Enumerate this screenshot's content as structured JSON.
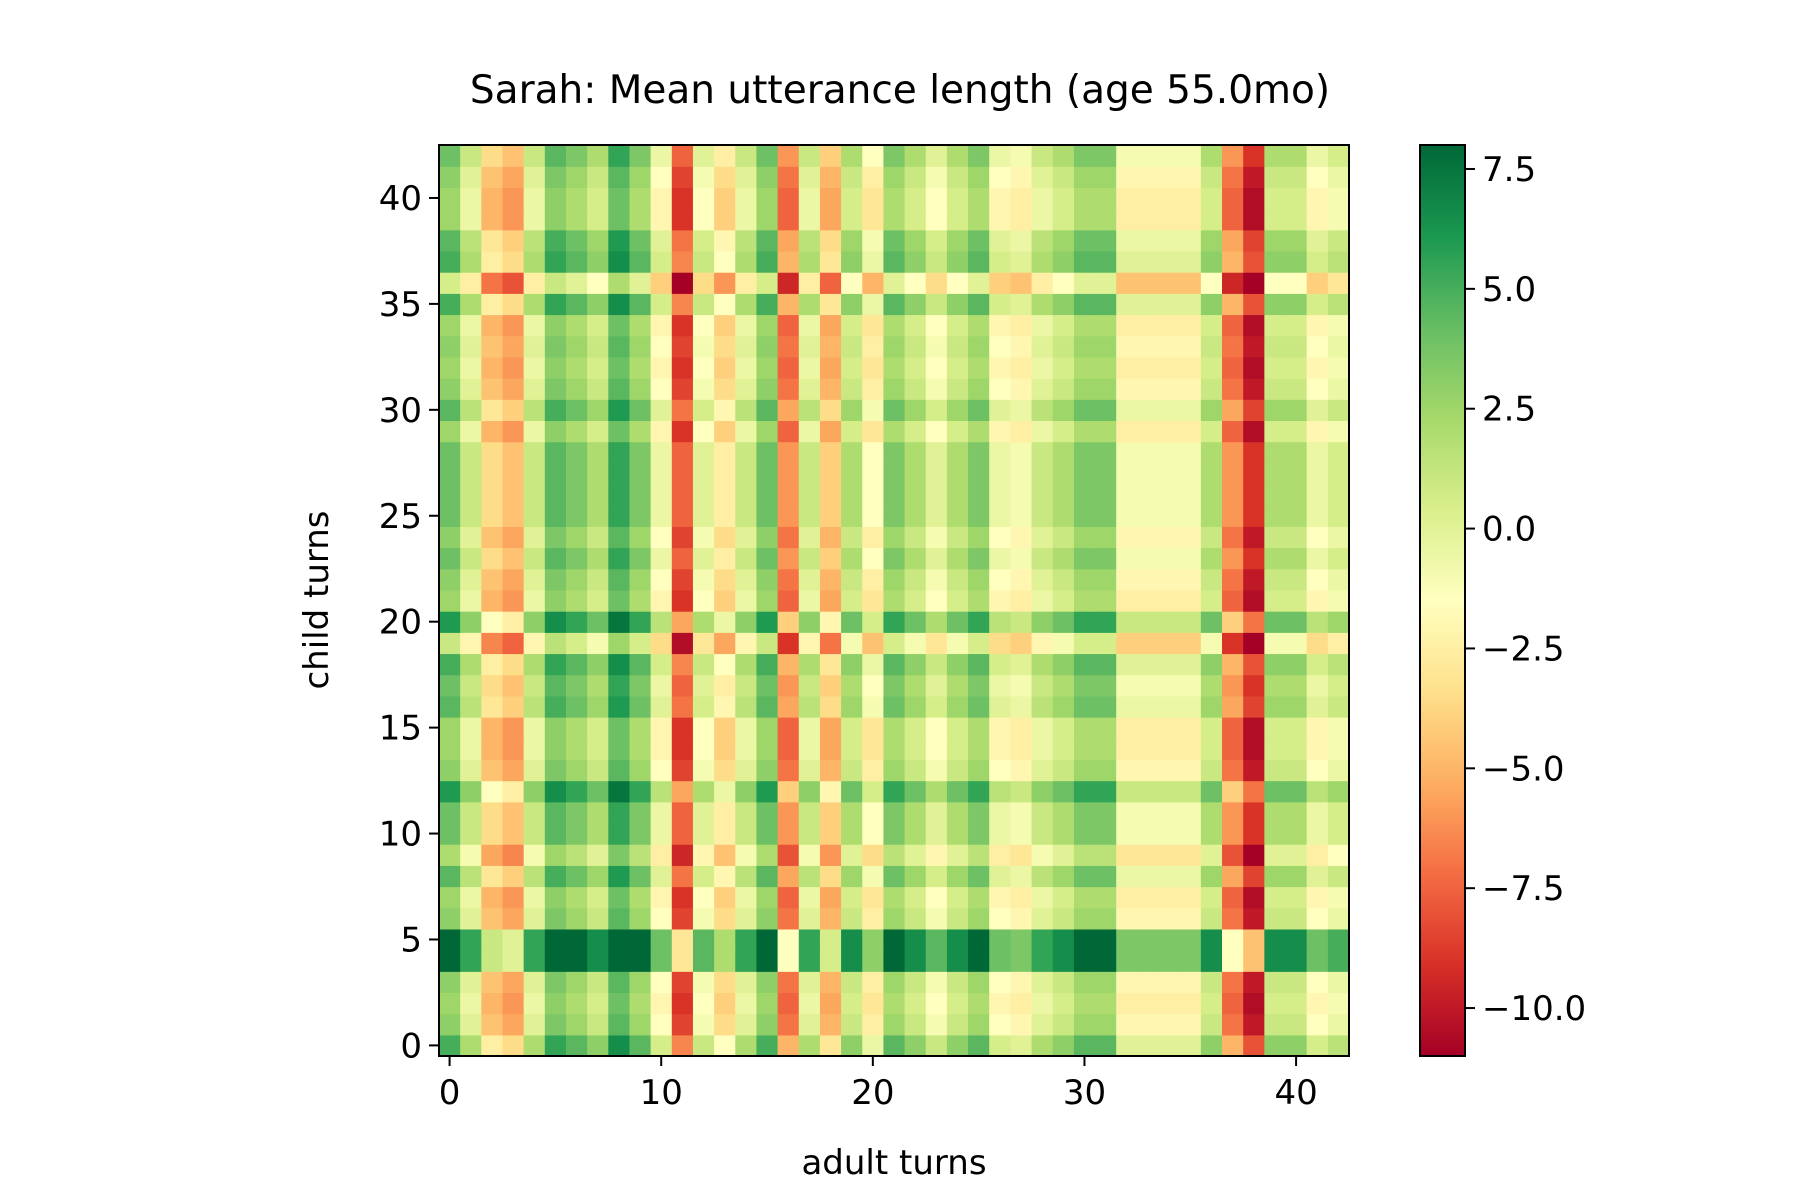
{
  "chart_data": {
    "type": "heatmap",
    "title": "Sarah: Mean utterance length (age 55.0mo)",
    "xlabel": "adult turns",
    "ylabel": "child turns",
    "n_cols": 43,
    "n_rows": 43,
    "x_ticks": [
      0,
      10,
      20,
      30,
      40
    ],
    "y_ticks": [
      0,
      5,
      10,
      15,
      20,
      25,
      30,
      35,
      40
    ],
    "colorbar": {
      "colormap": "RdYlGn",
      "vmin": -11,
      "vmax": 8,
      "ticks": [
        -10.0,
        -7.5,
        -5.0,
        -2.5,
        0.0,
        2.5,
        5.0,
        7.5
      ],
      "tick_labels": [
        "−10.0",
        "−7.5",
        "−5.0",
        "−2.5",
        "0.0",
        "2.5",
        "5.0",
        "7.5"
      ]
    },
    "col_values": [
      3.5,
      0.5,
      -4.0,
      -5.0,
      0.5,
      4.0,
      3.0,
      1.5,
      5.0,
      3.0,
      -1.0,
      -8.0,
      -0.5,
      -3.0,
      0.5,
      3.5,
      -6.5,
      0.5,
      -4.5,
      1.5,
      -2.0,
      3.0,
      1.5,
      -0.5,
      1.5,
      3.0,
      -1.0,
      -1.5,
      0.5,
      1.5,
      3.0,
      3.0,
      -1.5,
      -1.5,
      -1.5,
      -1.5,
      1.5,
      -6.5,
      -9.5,
      1.5,
      1.5,
      -1.0,
      0.0
    ],
    "row_values": [
      1.5,
      -0.5,
      -1.0,
      -0.5,
      5.0,
      5.0,
      -0.5,
      -1.0,
      1.0,
      -1.5,
      0.5,
      0.5,
      2.5,
      -0.5,
      -1.0,
      -1.0,
      1.0,
      0.5,
      1.5,
      -2.5,
      2.5,
      -1.0,
      -0.5,
      0.5,
      -0.5,
      0.5,
      0.5,
      0.5,
      0.5,
      -1.0,
      1.0,
      -0.5,
      -1.0,
      -0.5,
      -1.0,
      1.5,
      -3.0,
      1.5,
      1.0,
      -1.0,
      -1.0,
      -0.5,
      0.5
    ]
  }
}
